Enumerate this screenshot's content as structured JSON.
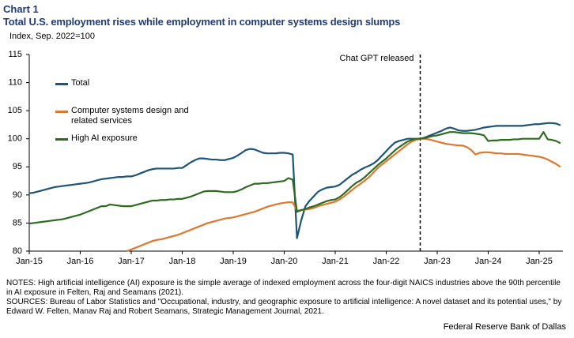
{
  "chart_data": {
    "type": "line",
    "label": "Chart 1",
    "title": "Total U.S. employment rises while employment in computer systems design slumps",
    "subtitle": "Index, Sep. 2022=100",
    "annotation": "Chat GPT released",
    "notes": "NOTES: High artificial intelligence (AI) exposure is the simple average of indexed employment across the four-digit NAICS industries above the 90th percentile in AI exposure in Felten, Raj and Seamans (2021).",
    "sources": "SOURCES: Bureau of Labor Statistics and \"Occupational, industry, and geographic exposure to artificial intelligence: A novel dataset and its potential uses,\" by Edward W. Felten, Manav Raj and Robert Seamans, Strategic Management Journal, 2021.",
    "credit": "Federal Reserve Bank of Dallas",
    "ylim": [
      80,
      115
    ],
    "yticks": [
      80,
      85,
      90,
      95,
      100,
      105,
      110,
      115
    ],
    "grid": false,
    "categories": [
      "Jan-15",
      null,
      null,
      null,
      null,
      null,
      null,
      null,
      null,
      null,
      null,
      null,
      "Jan-16",
      null,
      null,
      null,
      null,
      null,
      null,
      null,
      null,
      null,
      null,
      null,
      "Jan-17",
      null,
      null,
      null,
      null,
      null,
      null,
      null,
      null,
      null,
      null,
      null,
      "Jan-18",
      null,
      null,
      null,
      null,
      null,
      null,
      null,
      null,
      null,
      null,
      null,
      "Jan-19",
      null,
      null,
      null,
      null,
      null,
      null,
      null,
      null,
      null,
      null,
      null,
      "Jan-20",
      null,
      null,
      null,
      null,
      null,
      null,
      null,
      null,
      null,
      null,
      null,
      "Jan-21",
      null,
      null,
      null,
      null,
      null,
      null,
      null,
      null,
      null,
      null,
      null,
      "Jan-22",
      null,
      null,
      null,
      null,
      null,
      null,
      null,
      null,
      null,
      null,
      null,
      "Jan-23",
      null,
      null,
      null,
      null,
      null,
      null,
      null,
      null,
      null,
      null,
      null,
      "Jan-24",
      null,
      null,
      null,
      null,
      null,
      null,
      null,
      null,
      null,
      null,
      null,
      "Jan-25",
      null,
      null,
      null,
      null,
      null
    ],
    "series": [
      {
        "name": "Total",
        "color": "#1d5479",
        "values": [
          90.3,
          90.4,
          90.6,
          90.8,
          91.0,
          91.2,
          91.4,
          91.5,
          91.6,
          91.7,
          91.8,
          91.9,
          92.0,
          92.1,
          92.2,
          92.4,
          92.6,
          92.8,
          92.9,
          93.0,
          93.1,
          93.2,
          93.2,
          93.3,
          93.3,
          93.5,
          93.8,
          94.1,
          94.4,
          94.6,
          94.7,
          94.7,
          94.7,
          94.7,
          94.7,
          94.8,
          94.8,
          95.3,
          95.8,
          96.2,
          96.5,
          96.5,
          96.4,
          96.3,
          96.3,
          96.2,
          96.2,
          96.4,
          96.6,
          97.0,
          97.5,
          98.0,
          98.2,
          98.1,
          97.8,
          97.5,
          97.4,
          97.4,
          97.4,
          97.5,
          97.5,
          97.4,
          97.2,
          82.3,
          85.5,
          88.0,
          89.0,
          89.8,
          90.6,
          91.0,
          91.3,
          91.4,
          91.5,
          91.8,
          92.4,
          93.0,
          93.6,
          94.0,
          94.5,
          94.9,
          95.2,
          95.6,
          96.2,
          97.0,
          97.8,
          98.6,
          99.3,
          99.6,
          99.8,
          100.0,
          100.0,
          100.0,
          100.0,
          100.2,
          100.5,
          100.8,
          101.1,
          101.4,
          101.8,
          102.0,
          101.8,
          101.5,
          101.4,
          101.4,
          101.5,
          101.6,
          101.8,
          102.0,
          102.1,
          102.2,
          102.3,
          102.3,
          102.3,
          102.3,
          102.3,
          102.3,
          102.3,
          102.4,
          102.5,
          102.6,
          102.6,
          102.7,
          102.8,
          102.8,
          102.7,
          102.4
        ]
      },
      {
        "name": "Computer systems design and related services",
        "color": "#e0772e",
        "values": [
          null,
          null,
          null,
          null,
          null,
          null,
          null,
          null,
          null,
          null,
          null,
          null,
          null,
          null,
          null,
          null,
          null,
          null,
          null,
          null,
          null,
          null,
          null,
          80.0,
          80.3,
          80.6,
          80.9,
          81.2,
          81.5,
          81.8,
          82.0,
          82.1,
          82.3,
          82.5,
          82.7,
          82.9,
          83.2,
          83.5,
          83.8,
          84.1,
          84.4,
          84.7,
          85.0,
          85.2,
          85.4,
          85.6,
          85.8,
          85.9,
          86.0,
          86.2,
          86.4,
          86.6,
          86.8,
          87.0,
          87.3,
          87.6,
          87.9,
          88.1,
          88.3,
          88.5,
          88.6,
          88.7,
          88.7,
          87.2,
          87.3,
          87.4,
          87.5,
          87.7,
          88.0,
          88.2,
          88.4,
          88.6,
          88.8,
          89.2,
          89.7,
          90.3,
          90.9,
          91.5,
          92.0,
          92.6,
          93.2,
          94.0,
          94.8,
          95.4,
          96.0,
          96.6,
          97.2,
          97.8,
          98.4,
          99.0,
          99.5,
          99.8,
          100.0,
          100.0,
          99.9,
          99.7,
          99.5,
          99.3,
          99.1,
          99.0,
          98.9,
          98.8,
          98.8,
          98.5,
          98.0,
          97.2,
          97.5,
          97.6,
          97.6,
          97.5,
          97.4,
          97.4,
          97.3,
          97.3,
          97.3,
          97.3,
          97.2,
          97.1,
          97.0,
          96.9,
          96.8,
          96.6,
          96.3,
          95.9,
          95.5,
          95.0
        ]
      },
      {
        "name": "High AI exposure",
        "color": "#2e6b1f",
        "values": [
          84.9,
          85.0,
          85.1,
          85.2,
          85.3,
          85.4,
          85.5,
          85.6,
          85.7,
          85.9,
          86.1,
          86.3,
          86.5,
          86.8,
          87.1,
          87.4,
          87.7,
          88.0,
          88.0,
          88.3,
          88.2,
          88.1,
          88.0,
          88.0,
          88.0,
          88.2,
          88.4,
          88.6,
          88.8,
          89.0,
          89.0,
          89.1,
          89.1,
          89.2,
          89.2,
          89.3,
          89.3,
          89.5,
          89.7,
          90.0,
          90.3,
          90.6,
          90.7,
          90.7,
          90.7,
          90.6,
          90.5,
          90.5,
          90.5,
          90.7,
          91.0,
          91.4,
          91.7,
          92.0,
          92.0,
          92.1,
          92.1,
          92.2,
          92.3,
          92.4,
          92.5,
          93.0,
          92.7,
          87.0,
          87.3,
          87.5,
          87.8,
          88.0,
          88.3,
          88.6,
          88.9,
          89.1,
          89.2,
          89.6,
          90.2,
          90.9,
          91.6,
          92.2,
          92.6,
          93.2,
          93.9,
          94.6,
          95.3,
          95.9,
          96.5,
          97.2,
          97.9,
          98.5,
          99.0,
          99.5,
          99.8,
          100.0,
          100.0,
          100.1,
          100.3,
          100.5,
          100.6,
          100.8,
          101.0,
          101.2,
          101.2,
          101.1,
          101.0,
          101.0,
          101.0,
          100.9,
          100.8,
          100.6,
          99.6,
          99.7,
          99.7,
          99.8,
          99.8,
          99.8,
          99.9,
          99.9,
          100.0,
          100.0,
          100.0,
          100.0,
          100.0,
          101.2,
          99.9,
          99.8,
          99.6,
          99.2
        ]
      }
    ]
  }
}
